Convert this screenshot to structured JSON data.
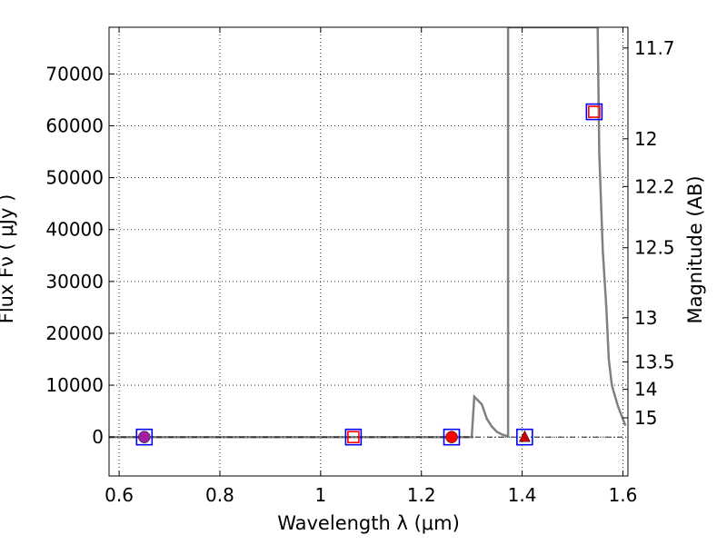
{
  "chart_data": {
    "type": "scatter",
    "xlabel": "Wavelength  λ (μm)",
    "ylabel": "Flux  Fν  ( μJy )",
    "y2label": "Magnitude (AB)",
    "xlim": [
      0.58,
      1.61
    ],
    "ylim": [
      -7500,
      79000
    ],
    "grid": true,
    "x_ticks": [
      {
        "value": 0.6,
        "label": "0.6"
      },
      {
        "value": 0.8,
        "label": "0.8"
      },
      {
        "value": 1.0,
        "label": "1"
      },
      {
        "value": 1.2,
        "label": "1.2"
      },
      {
        "value": 1.4,
        "label": "1.4"
      },
      {
        "value": 1.6,
        "label": "1.6"
      }
    ],
    "y_ticks": [
      {
        "value": 0,
        "label": "0"
      },
      {
        "value": 10000,
        "label": "10000"
      },
      {
        "value": 20000,
        "label": "20000"
      },
      {
        "value": 30000,
        "label": "30000"
      },
      {
        "value": 40000,
        "label": "40000"
      },
      {
        "value": 50000,
        "label": "50000"
      },
      {
        "value": 60000,
        "label": "60000"
      },
      {
        "value": 70000,
        "label": "70000"
      }
    ],
    "y2_ticks": [
      {
        "flux": 75000,
        "label": "11.7"
      },
      {
        "flux": 57500,
        "label": "12"
      },
      {
        "flux": 48300,
        "label": "12.2"
      },
      {
        "flux": 36500,
        "label": "12.5"
      },
      {
        "flux": 23000,
        "label": "13"
      },
      {
        "flux": 14500,
        "label": "13.5"
      },
      {
        "flux": 9200,
        "label": "14"
      },
      {
        "flux": 3700,
        "label": "15"
      }
    ],
    "model_curve": {
      "color": "#808080",
      "points": [
        [
          0.58,
          0
        ],
        [
          1.3,
          0
        ],
        [
          1.305,
          7800
        ],
        [
          1.32,
          6300
        ],
        [
          1.33,
          3500
        ],
        [
          1.34,
          2000
        ],
        [
          1.35,
          1000
        ],
        [
          1.36,
          500
        ],
        [
          1.372,
          150
        ],
        [
          1.372,
          79000
        ],
        [
          1.55,
          79000
        ],
        [
          1.553,
          55000
        ],
        [
          1.56,
          36000
        ],
        [
          1.567,
          25000
        ],
        [
          1.572,
          15000
        ],
        [
          1.578,
          10000
        ],
        [
          1.59,
          6000
        ],
        [
          1.605,
          2200
        ]
      ]
    },
    "reference_line": {
      "y": 0,
      "style": "dash-dot",
      "color": "#000000"
    },
    "series": [
      {
        "marker": "open-square",
        "color": "#0000ff",
        "points": [
          [
            0.65,
            0
          ],
          [
            1.065,
            0
          ],
          [
            1.26,
            0
          ],
          [
            1.405,
            0
          ],
          [
            1.543,
            62700
          ]
        ]
      },
      {
        "marker": "open-square",
        "color": "#ff0000",
        "points": [
          [
            1.065,
            0
          ],
          [
            1.543,
            62700
          ]
        ]
      },
      {
        "marker": "circle",
        "color": "#a020a0",
        "points": [
          [
            0.65,
            0
          ]
        ]
      },
      {
        "marker": "circle",
        "color": "#ff0000",
        "points": [
          [
            1.26,
            0
          ]
        ]
      },
      {
        "marker": "triangle",
        "color": "#cc0000",
        "points": [
          [
            1.405,
            0
          ]
        ]
      }
    ]
  }
}
